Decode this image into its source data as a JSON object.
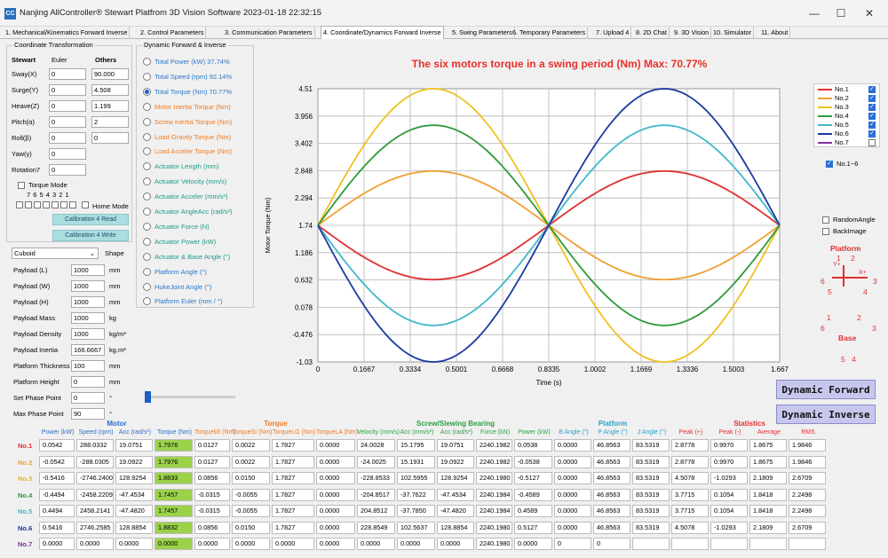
{
  "window": {
    "app_icon": "CC",
    "title": "Nanjing AllController® Stewart Platfrom 3D Vision Software 2023-01-18 22:32:15",
    "controls": [
      "minimize-icon",
      "maximize-icon",
      "close-icon"
    ]
  },
  "tabs": [
    {
      "label": "1. Mechanical/Kinematics Forward Inverse",
      "active": false
    },
    {
      "label": "2. Control Parameters",
      "active": false
    },
    {
      "label": "3. Communication Parameters",
      "active": false
    },
    {
      "label": "4. Coordinate/Dynamics Forward Inverse",
      "active": true
    },
    {
      "label": "5. Swing Parameters",
      "active": false
    },
    {
      "label": "6. Temporary Parameters",
      "active": false
    },
    {
      "label": "7. Upload 4",
      "active": false
    },
    {
      "label": "8. 2D Chat",
      "active": false
    },
    {
      "label": "9. 3D Vision",
      "active": false
    },
    {
      "label": "10. Simulator",
      "active": false
    },
    {
      "label": "11. About",
      "active": false
    }
  ],
  "coord": {
    "group_title": "Coordinate Transformation",
    "col_stewart": "Stewart",
    "col_euler": "Euler",
    "col_others": "Others",
    "rows": [
      {
        "label": "Sway(X)",
        "value": "0",
        "other": "90.000"
      },
      {
        "label": "Surge(Y)",
        "value": "0",
        "other": "4.508"
      },
      {
        "label": "Heave(Z)",
        "value": "0",
        "other": "1.199"
      },
      {
        "label": "Pitch(α)",
        "value": "0",
        "other": "2"
      },
      {
        "label": "Roll(β)",
        "value": "0",
        "other": "0"
      },
      {
        "label": "Yaw(γ)",
        "value": "0",
        "other": ""
      },
      {
        "label": "Rotation7",
        "value": "0",
        "other": ""
      }
    ],
    "torque_mode": "Torque  Mode",
    "motor_numbers": "7 6 5 4 3 2 1",
    "home_mode": "Home Mode",
    "cal_read": "Calibration 4 Read",
    "cal_write": "Calibration 4 Write"
  },
  "payload": {
    "shape_value": "Cuboid",
    "shape_label": "Shape",
    "rows": [
      {
        "label": "Payload (L)",
        "value": "1000",
        "unit": "mm"
      },
      {
        "label": "Payload (W)",
        "value": "1000",
        "unit": "mm"
      },
      {
        "label": "Payload (H)",
        "value": "1000",
        "unit": "mm"
      },
      {
        "label": "Payload Mass",
        "value": "1000",
        "unit": "kg"
      },
      {
        "label": "Payload Density",
        "value": "1000",
        "unit": "kg/m³"
      },
      {
        "label": "Payload Inertia",
        "value": "166.6667",
        "unit": "kg.m²"
      },
      {
        "label": "Platform Thickness",
        "value": "100",
        "unit": "mm"
      },
      {
        "label": "Platform Height",
        "value": "0",
        "unit": "mm"
      },
      {
        "label": "Set Phase Point",
        "value": "0",
        "unit": "°"
      },
      {
        "label": "Max Phase Point",
        "value": "90",
        "unit": "°"
      }
    ]
  },
  "dyn": {
    "group_title": "Dynamic Forward & Inverse",
    "options": [
      {
        "label": "Total Power (kW) 37.74%",
        "color": "#2a78c8",
        "selected": false
      },
      {
        "label": "Total Speed (rpm) 92.14%",
        "color": "#2a78c8",
        "selected": false
      },
      {
        "label": "Total Torque (Nm) 70.77%",
        "color": "#2a78c8",
        "selected": true
      },
      {
        "label": "Motor Inertia Torque (Nm)",
        "color": "#f07a22",
        "selected": false
      },
      {
        "label": "Screw Inertia Torque (Nm)",
        "color": "#f07a22",
        "selected": false
      },
      {
        "label": "Load Gravity Torque (Nm)",
        "color": "#f07a22",
        "selected": false
      },
      {
        "label": "Load Acceler Torque (Nm)",
        "color": "#f07a22",
        "selected": false
      },
      {
        "label": "Actuator Length (mm)",
        "color": "#1e9a86",
        "selected": false
      },
      {
        "label": "Actuator Velocity (mm/s)",
        "color": "#1e9a86",
        "selected": false
      },
      {
        "label": "Actuator Acceler (mm/s²)",
        "color": "#1e9a86",
        "selected": false
      },
      {
        "label": "Actuator AngleAcc (rad/s²)",
        "color": "#1e9a86",
        "selected": false
      },
      {
        "label": "Actuator Force (N)",
        "color": "#1e9a86",
        "selected": false
      },
      {
        "label": "Actuator Power (kW)",
        "color": "#1e9a86",
        "selected": false
      },
      {
        "label": "Actuator & Base Angle (°)",
        "color": "#1e9a86",
        "selected": false
      },
      {
        "label": "Platform Angle (°)",
        "color": "#2a78c8",
        "selected": false
      },
      {
        "label": "HukeJoint Angle (°)",
        "color": "#2a78c8",
        "selected": false
      },
      {
        "label": "Platform Euler (mm / °)",
        "color": "#2a78c8",
        "selected": false
      }
    ]
  },
  "chart_data": {
    "type": "line",
    "title": "The six motors torque in a swing period (Nm)   Max: 70.77%",
    "xlabel": "Time (s)",
    "ylabel": "Motor Torque (Nm)",
    "x_ticks": [
      "0",
      "0.1667",
      "0.3334",
      "0.5001",
      "0.6668",
      "0.8335",
      "1.0002",
      "1.1669",
      "1.3336",
      "1.5003",
      "1.667"
    ],
    "y_ticks": [
      "-1.03",
      "-0.476",
      "0.078",
      "0.632",
      "1.186",
      "1.74",
      "2.294",
      "2.848",
      "3.402",
      "3.956",
      "4.51"
    ],
    "xlim": [
      0,
      1.667
    ],
    "ylim": [
      -1.03,
      4.51
    ],
    "grid": true,
    "series": [
      {
        "name": "No.1",
        "color": "#e03030",
        "amplitude": -1.1,
        "baseline": 1.74
      },
      {
        "name": "No.2",
        "color": "#f0a030",
        "amplitude": 1.1,
        "baseline": 1.74
      },
      {
        "name": "No.3",
        "color": "#f0c020",
        "amplitude": 2.77,
        "baseline": 1.74
      },
      {
        "name": "No.4",
        "color": "#2e9a3a",
        "amplitude": 2.03,
        "baseline": 1.74
      },
      {
        "name": "No.5",
        "color": "#40b8c8",
        "amplitude": -2.03,
        "baseline": 1.74
      },
      {
        "name": "No.6",
        "color": "#1a3aa0",
        "amplitude": -2.77,
        "baseline": 1.74
      },
      {
        "name": "No.7",
        "color": "#8030a0",
        "amplitude": 0,
        "baseline": null
      }
    ],
    "legend_checked": [
      true,
      true,
      true,
      true,
      true,
      true,
      false
    ],
    "legend_all": "No.1~6",
    "legend_all_checked": true
  },
  "options": {
    "random_angle": "RandomAngle",
    "back_image": "BackImage"
  },
  "diagram": {
    "platform": "Platform",
    "base": "Base",
    "platform_nums": {
      "top1": "1",
      "top2": "2",
      "left": "6",
      "right": "3",
      "bl": "5",
      "br": "4"
    },
    "base_nums": {
      "top1": "1",
      "top2": "2",
      "left": "6",
      "right": "3",
      "bl": "5",
      "br": "4"
    },
    "axis_y": "Y+",
    "axis_x": "X+"
  },
  "buttons": {
    "forward": "Dynamic Forward",
    "inverse": "Dynamic Inverse"
  },
  "table": {
    "group_headers": [
      {
        "label": "Motor",
        "color": "#2a6fc8"
      },
      {
        "label": "Torque",
        "color": "#f07a22"
      },
      {
        "label": "Screw/Slewing Bearing",
        "color": "#2aa040"
      },
      {
        "label": "Platform",
        "color": "#2aa0c8"
      },
      {
        "label": "Statistics",
        "color": "#e03030"
      }
    ],
    "columns": [
      {
        "label": "Power (kW)",
        "color": "#2a6fc8"
      },
      {
        "label": "Speed (rpm)",
        "color": "#2a6fc8"
      },
      {
        "label": "Acc (rad/s²)",
        "color": "#2a6fc8"
      },
      {
        "label": "Torque (Nm)",
        "color": "#2a6fc8"
      },
      {
        "label": "TorqueMI (Nm)",
        "color": "#f07a22"
      },
      {
        "label": "TorqueSI (Nm)",
        "color": "#f07a22"
      },
      {
        "label": "TorqueLG (Nm)",
        "color": "#f07a22"
      },
      {
        "label": "TorqueLA (Nm)",
        "color": "#f07a22"
      },
      {
        "label": "Velocity (mm/s)",
        "color": "#2aa040"
      },
      {
        "label": "Acc (mm/s²)",
        "color": "#2aa040"
      },
      {
        "label": "Acc (rad/s²)",
        "color": "#2aa040"
      },
      {
        "label": "Force (kN)",
        "color": "#2aa040"
      },
      {
        "label": "Power (kW)",
        "color": "#2aa040"
      },
      {
        "label": "B Angle (°)",
        "color": "#2aa0c8"
      },
      {
        "label": "P Angle (°)",
        "color": "#2aa0c8"
      },
      {
        "label": "J Angle (°)",
        "color": "#2aa0c8"
      },
      {
        "label": "Peak (+)",
        "color": "#e03030"
      },
      {
        "label": "Peak (-)",
        "color": "#e03030"
      },
      {
        "label": "Average",
        "color": "#e03030"
      },
      {
        "label": "RMS",
        "color": "#e03030"
      }
    ],
    "rows": [
      {
        "label": "No.1",
        "color": "#e03030",
        "cells": [
          "0.0542",
          "288.0332",
          "19.0751",
          "1.7976",
          "0.0127",
          "0.0022",
          "1.7827",
          "0.0000",
          "24.0028",
          "15.1795",
          "19.0751",
          "2240.1982",
          "0.0538",
          "0.0000",
          "46.8563",
          "83.5319",
          "2.8778",
          "0.9970",
          "1.8675",
          "1.9846"
        ]
      },
      {
        "label": "No.2",
        "color": "#f0a030",
        "cells": [
          "-0.0542",
          "-288.0305",
          "19.0922",
          "1.7976",
          "0.0127",
          "0.0022",
          "1.7827",
          "0.0000",
          "-24.0025",
          "15.1931",
          "19.0922",
          "2240.1982",
          "-0.0538",
          "0.0000",
          "46.8563",
          "83.5319",
          "2.8778",
          "0.9970",
          "1.8675",
          "1.9846"
        ]
      },
      {
        "label": "No.3",
        "color": "#e0b820",
        "cells": [
          "-0.5416",
          "-2746.2400",
          "128.9254",
          "1.8833",
          "0.0856",
          "0.0150",
          "1.7827",
          "0.0000",
          "-228.8533",
          "102.5955",
          "128.9254",
          "2240.1980",
          "-0.5127",
          "0.0000",
          "46.8563",
          "83.5319",
          "4.5078",
          "-1.0293",
          "2.1809",
          "2.6709"
        ]
      },
      {
        "label": "No.4",
        "color": "#2e9a3a",
        "cells": [
          "-0.4494",
          "-2458.2209",
          "-47.4534",
          "1.7457",
          "-0.0315",
          "-0.0055",
          "1.7827",
          "0.0000",
          "-204.8517",
          "-37.7622",
          "-47.4534",
          "2240.1984",
          "-0.4589",
          "0.0000",
          "46.8563",
          "83.5319",
          "3.7715",
          "0.1054",
          "1.8418",
          "2.2498"
        ]
      },
      {
        "label": "No.5",
        "color": "#40b8c8",
        "cells": [
          "0.4494",
          "2458.2141",
          "-47.4820",
          "1.7457",
          "-0.0315",
          "-0.0055",
          "1.7827",
          "0.0000",
          "204.8512",
          "-37.7850",
          "-47.4820",
          "2240.1984",
          "0.4589",
          "0.0000",
          "46.8563",
          "83.5319",
          "3.7715",
          "0.1054",
          "1.8418",
          "2.2498"
        ]
      },
      {
        "label": "No.6",
        "color": "#1a3aa0",
        "cells": [
          "0.5416",
          "2746.2585",
          "128.8854",
          "1.8832",
          "0.0856",
          "0.0150",
          "1.7827",
          "0.0000",
          "228.8549",
          "102.5637",
          "128.8854",
          "2240.1980",
          "0.5127",
          "0.0000",
          "46.8563",
          "83.5319",
          "4.5078",
          "-1.0293",
          "2.1809",
          "2.6709"
        ]
      },
      {
        "label": "No.7",
        "color": "#8030a0",
        "cells": [
          "0.0000",
          "0.0000",
          "0.0000",
          "0.0000",
          "0.0000",
          "0.0000",
          "0.0000",
          "0.0000",
          "0.0000",
          "0.0000",
          "0.0000",
          "2240.1980",
          "0.0000",
          "0",
          "0",
          "",
          "",
          "",
          "",
          ""
        ]
      }
    ],
    "highlight_col": 3
  }
}
